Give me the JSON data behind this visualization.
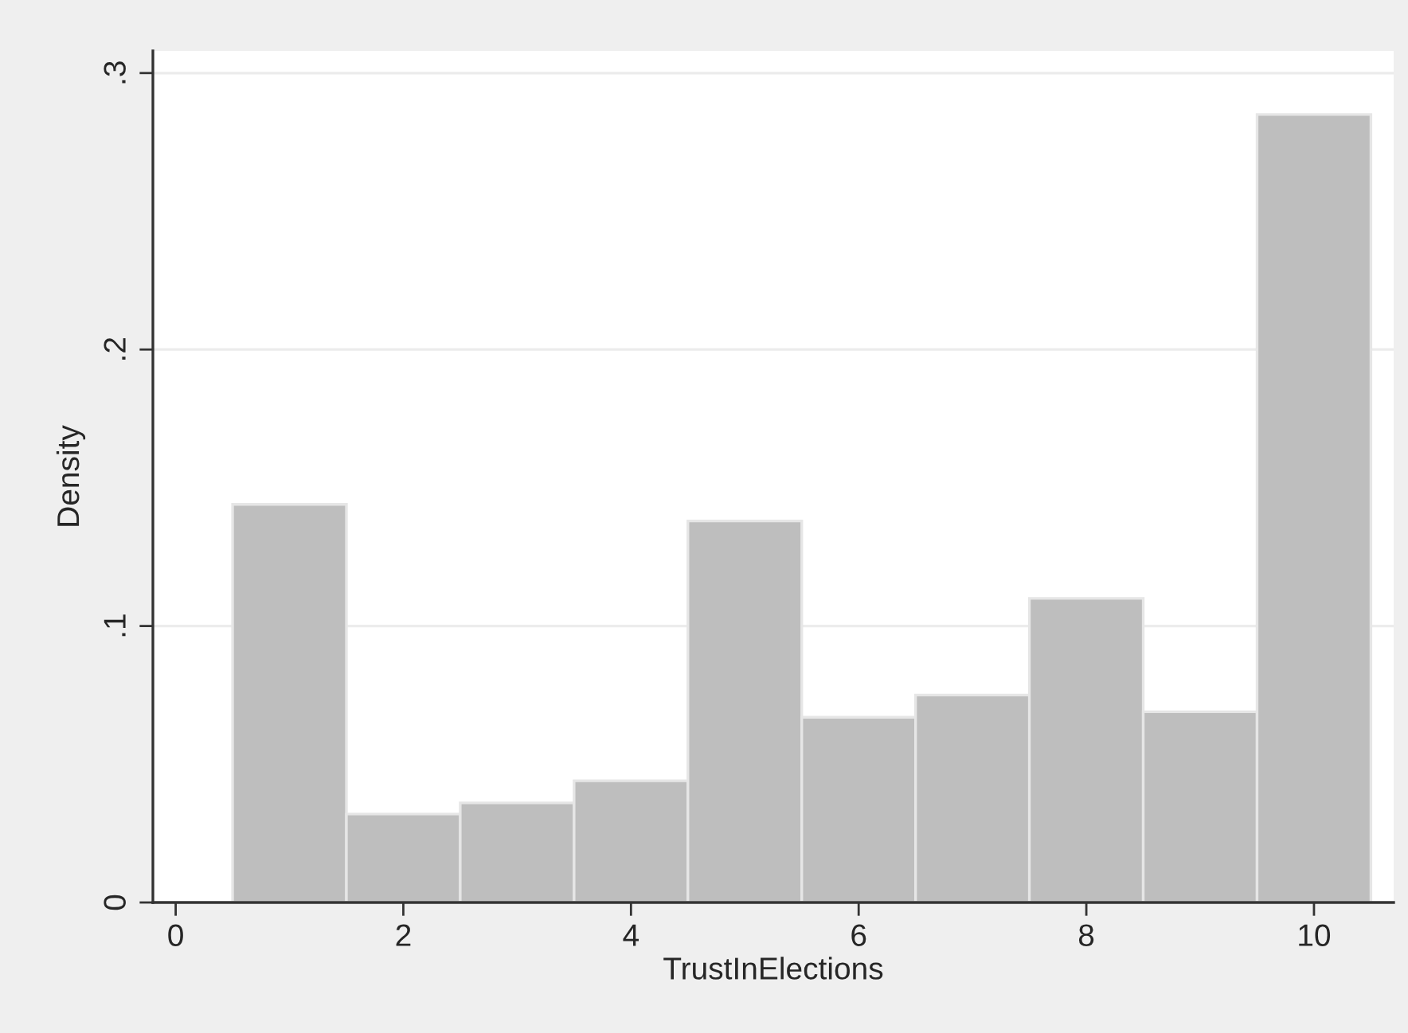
{
  "chart_data": {
    "type": "histogram",
    "xlabel": "TrustInElections",
    "ylabel": "Density",
    "bins": [
      0.5,
      1.5,
      2.5,
      3.5,
      4.5,
      5.5,
      6.5,
      7.5,
      8.5,
      9.5,
      10.5
    ],
    "values": [
      0.144,
      0.032,
      0.036,
      0.044,
      0.138,
      0.067,
      0.075,
      0.11,
      0.069,
      0.285
    ],
    "color": "#bebebe",
    "xlim": [
      -0.2,
      10.7
    ],
    "xticks": [
      0,
      2,
      4,
      6,
      8,
      10
    ],
    "ylim": [
      0,
      0.308
    ],
    "yticks": [
      {
        "value": 0,
        "label": "0"
      },
      {
        "value": 0.1,
        "label": ".1"
      },
      {
        "value": 0.2,
        "label": ".2"
      },
      {
        "value": 0.3,
        "label": ".3"
      }
    ],
    "grid": "y"
  }
}
